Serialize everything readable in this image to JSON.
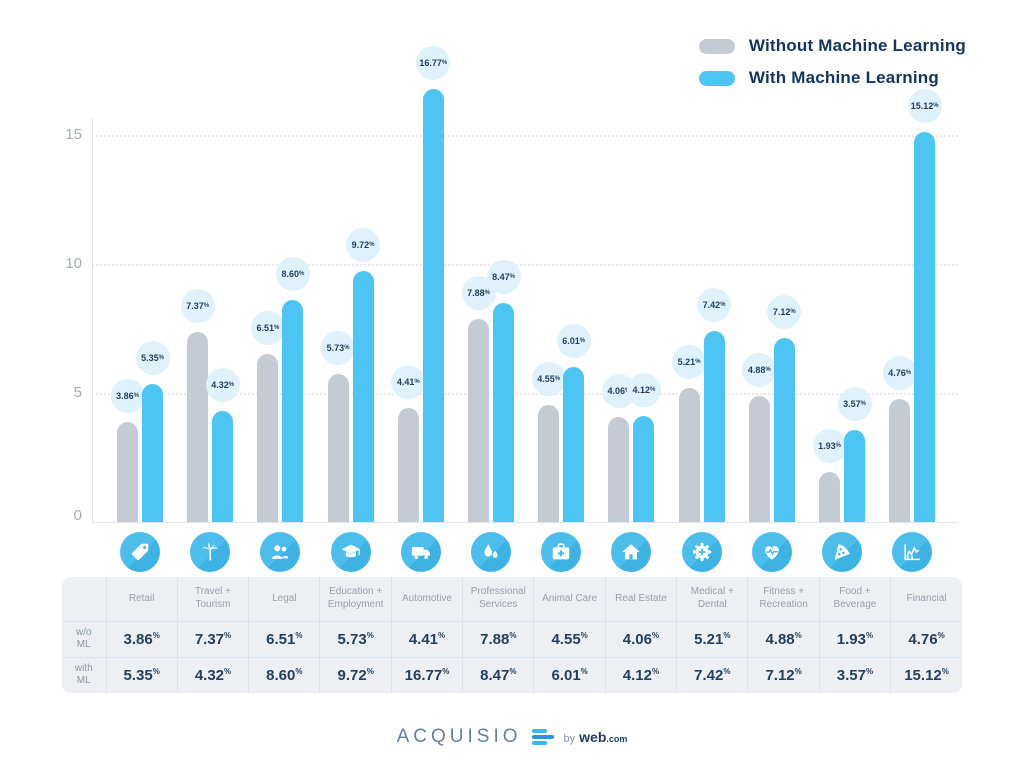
{
  "legend": {
    "items": [
      {
        "label": "Without Machine Learning",
        "color": "#c5cbd3"
      },
      {
        "label": "With Machine Learning",
        "color": "#4dc4f1"
      }
    ]
  },
  "colors": {
    "bar_gray": "#c5cbd3",
    "bar_blue": "#4dc4f1",
    "bubble_bg": "#dff1fb",
    "bubble_text": "#1f3e5f",
    "icon_circle": "#47b9e9",
    "axis_text": "#a7abb1",
    "table_bg": "#edeff3"
  },
  "chart_data": {
    "type": "bar",
    "categories": [
      "Retail",
      "Travel + Tourism",
      "Legal",
      "Education + Employment",
      "Automotive",
      "Professional Services",
      "Animal Care",
      "Real Estate",
      "Medical + Dental",
      "Fitness + Recreation",
      "Food + Beverage",
      "Financial"
    ],
    "icons": [
      "price-tag-icon",
      "palm-tree-icon",
      "people-icon",
      "graduation-cap-icon",
      "truck-icon",
      "water-drops-icon",
      "medical-kit-icon",
      "house-icon",
      "gear-cross-icon",
      "heart-pulse-icon",
      "pizza-icon",
      "chart-icon"
    ],
    "series": [
      {
        "name": "Without Machine Learning",
        "values": [
          3.86,
          7.37,
          6.51,
          5.73,
          4.41,
          7.88,
          4.55,
          4.06,
          5.21,
          4.88,
          1.93,
          4.76
        ],
        "labels": [
          "3.86",
          "7.37",
          "6.51",
          "5.73",
          "4.41",
          "7.88",
          "4.55",
          "4.06",
          "5.21",
          "4.88",
          "1.93",
          "4.76"
        ]
      },
      {
        "name": "With Machine Learning",
        "values": [
          5.35,
          4.32,
          8.6,
          9.72,
          16.77,
          8.47,
          6.01,
          4.12,
          7.42,
          7.12,
          3.57,
          15.12
        ],
        "labels": [
          "5.35",
          "4.32",
          "8.60",
          "9.72",
          "16.77",
          "8.47",
          "6.01",
          "4.12",
          "7.42",
          "7.12",
          "3.57",
          "15.12"
        ]
      }
    ],
    "unit_suffix": "%",
    "yticks": [
      0,
      5,
      10,
      15
    ],
    "ylim": [
      0,
      17
    ],
    "grid": true,
    "legend_position": "top-right"
  },
  "table": {
    "row_labels": [
      "w/o\nML",
      "with\nML"
    ],
    "headers": [
      "Retail",
      "Travel +\nTourism",
      "Legal",
      "Education +\nEmployment",
      "Automotive",
      "Professional\nServices",
      "Animal Care",
      "Real Estate",
      "Medical +\nDental",
      "Fitness +\nRecreation",
      "Food +\nBeverage",
      "Financial"
    ]
  },
  "footer": {
    "brand": "ACQUISIO",
    "by_label": "by",
    "web_label": "web",
    "com_label": ".com"
  }
}
